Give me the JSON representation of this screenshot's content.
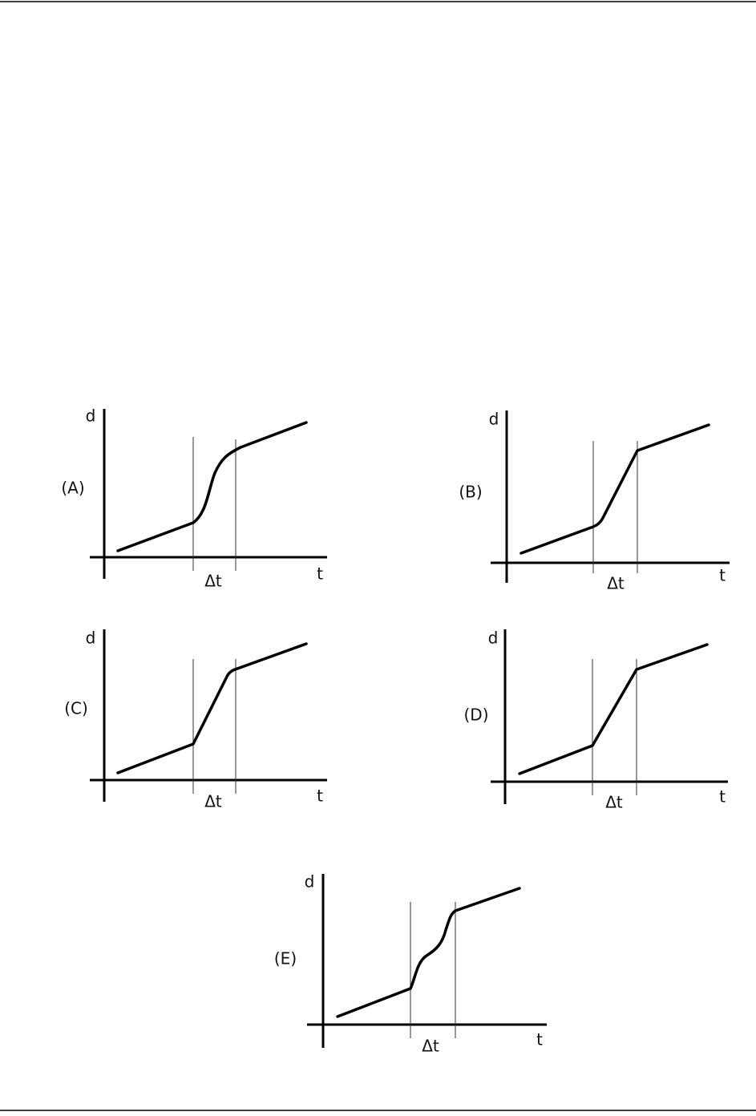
{
  "graphs": [
    {
      "label": "(A)",
      "y_axis": "d",
      "x_axis": "t",
      "interval": "Δt"
    },
    {
      "label": "(B)",
      "y_axis": "d",
      "x_axis": "t",
      "interval": "Δt"
    },
    {
      "label": "(C)",
      "y_axis": "d",
      "x_axis": "t",
      "interval": "Δt"
    },
    {
      "label": "(D)",
      "y_axis": "d",
      "x_axis": "t",
      "interval": "Δt"
    },
    {
      "label": "(E)",
      "y_axis": "d",
      "x_axis": "t",
      "interval": "Δt"
    }
  ]
}
